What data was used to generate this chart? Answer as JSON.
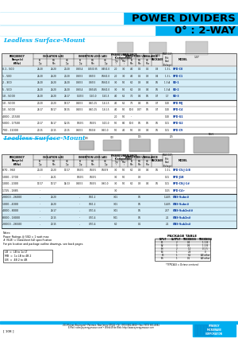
{
  "title_line1": "POWER DIVIDERS",
  "title_line2": "0° : 2-WAY",
  "cyan_color": "#00AEEF",
  "black_color": "#000000",
  "white_color": "#FFFFFF",
  "light_blue": "#D6EEF8",
  "section1_title": "Leadless Surface-Mount",
  "section2_title": "Leadless Surface-Mount",
  "bg_color": "#FFFFFF",
  "footer_text": "201 McLean Boulevard • Paterson, New Jersey 07504 • Tel: (973) 881-8800 • Fax: (973) 881-8361\nE-Mail: sales@synergymwave.com • World Wide Web: http://www.synergymwave.com",
  "page_num": "[ 108 ]",
  "table1_data": [
    [
      "0.1 - 500",
      "25/20",
      "25/20",
      "20/20",
      "0.3/0.4",
      "0.25/0.35",
      "0.45/1.0",
      "2.0",
      "3.0",
      "4.0",
      "0.2",
      "0.2",
      "0.3",
      "1.3 L",
      "3",
      "SPD-C0"
    ],
    [
      "1 - 500",
      "25/20",
      "25/20",
      "20/20",
      "0.3/0.5",
      "0.3/0.5",
      "0.56/1.0",
      "2.0",
      "3.0",
      "4.0",
      "0.2",
      "0.3",
      "0.4",
      "1.3 L",
      "3",
      "SPD-C1"
    ],
    [
      "2 - 300",
      "25/20",
      "25/20",
      "25/20",
      "0.3/0.5",
      "0.3/0.5",
      "0.56/1.0",
      "3.0",
      "5.0",
      "6.0",
      "0.3",
      "0.4",
      "0.5",
      "1.3 A",
      "3",
      "SD-1"
    ],
    [
      "5 - 500",
      "25/20",
      "25/20",
      "25/20",
      "0.3/0.4",
      "0.3/0.45",
      "0.56/1.0",
      "3.0",
      "5.0",
      "6.0",
      "0.3",
      "0.4",
      "0.5",
      "1.3 A",
      "3",
      "SD-2"
    ],
    [
      "10 - 5000",
      "25/20",
      "25/20",
      "25/17",
      "1.0/0.5",
      "1.5/1.0",
      "1.5/1.5",
      "4.0",
      "6.5",
      "7.0",
      "0.4",
      "0.5",
      "0.7",
      "1.7",
      "4",
      "SD-3"
    ],
    [
      "10 - 5000",
      "20/20",
      "20/20",
      "18/17",
      "0.4/0.5",
      "0.6/1.15",
      "1.3/1.5",
      "4.0",
      "6.5",
      "7.5",
      "0.4",
      "0.5",
      "0.7",
      "1.00",
      "4",
      "SPD-MJ"
    ],
    [
      "10 - 5000",
      "25/17",
      "18/17",
      "18/15",
      "0.4/0.5",
      "0.6/1.15",
      "1.3/1.5",
      "4.0",
      "5.0",
      "10.0",
      "0.37",
      "0.5",
      "0.7",
      "1.00",
      "4",
      "SPD-C4"
    ],
    [
      "4000 - 21500",
      "",
      "",
      "",
      "",
      "",
      "",
      "2.0",
      "5.0",
      "--",
      "",
      "",
      "",
      "1.00",
      "4",
      "SPD-G1"
    ],
    [
      "5000 - 17500",
      "20/17",
      "15/17",
      "12/15",
      "0.5/0.5",
      "0.5/0.5",
      "1.0/1.0",
      "5.0",
      "8.0",
      "10.0",
      "0.5",
      "0.5",
      "0.5",
      "1.01",
      "4",
      "SPD-G2"
    ],
    [
      "700 - 11000",
      "20/15",
      "20/15",
      "20/15",
      "0.6/0.5",
      "0.5/0.8",
      "0.6/1.0",
      "5.0",
      "4.0",
      "5.0",
      "0.3",
      "0.4",
      "0.5",
      "1.01",
      "3",
      "SPD-C9"
    ]
  ],
  "table2_data": [
    [
      "870 - 960",
      "20/20",
      "20/20",
      "17/17",
      "0.5/0.5",
      "0.5/0.5",
      "0.5/0.9",
      "3.0",
      "5.0",
      "6.0",
      "0.3",
      "0.4",
      "0.5",
      "1.0 L",
      "3",
      "SPD-C5/J-2/B"
    ],
    [
      "1000 - 1700",
      "--",
      "25/21",
      "",
      "0.5/0.5",
      "0.5/0.5",
      "",
      "3.0",
      "5.0",
      "",
      "0.3",
      "",
      "",
      "1.01",
      "3",
      "SPD-J1B"
    ],
    [
      "1000 - 2000",
      "17/17",
      "17/17",
      "14/13",
      "0.4/0.5",
      "0.5/0.5",
      "0.9/1.0",
      "3.0",
      "5.0",
      "6.0",
      "0.3",
      "0.4",
      "0.5",
      "1.01",
      "3",
      "SPD-C8/J-1#"
    ],
    [
      "1725 - 1885",
      "--",
      "",
      "",
      "",
      "",
      "",
      "3.0",
      "",
      "",
      "",
      "",
      "",
      "1.0/5",
      "3",
      "SPD-C4+"
    ],
    [
      "20000 - 26000",
      "--",
      "25/20",
      "",
      "--",
      "0.5/1.2",
      "",
      "3.01",
      "",
      "",
      "0.5",
      "",
      "",
      "1.24/5",
      "3",
      "GNS-Subn#"
    ],
    [
      "1000 - 4000",
      "--",
      "25/20",
      "",
      "--",
      "0.5/1.2",
      "",
      "3.01",
      "",
      "",
      "0.5",
      "",
      "",
      "1.24/5",
      "3",
      "GNS-Subn#"
    ],
    [
      "4000 - 8000",
      "--",
      "25/17",
      "",
      "--",
      "0.7/1.4",
      "",
      "3.01",
      "",
      "",
      "0.5",
      "",
      "",
      "2.57",
      "3",
      "GNS-Sub2n##"
    ],
    [
      "8000 - 18000",
      "--",
      "20/15",
      "",
      "--",
      "0.7/1.4",
      "",
      "5.01",
      "",
      "",
      "0.5",
      "",
      "",
      "2.1",
      "3",
      "GNS-Sub2n#"
    ],
    [
      "20000 - 26500",
      "--",
      "20/15",
      "",
      "--",
      "0.7/1.4",
      "",
      "6.0",
      "",
      "",
      "0.1",
      "",
      "",
      "2.1",
      "3",
      "GNS-Sub2n#"
    ]
  ],
  "notes": [
    "Notes:",
    "Power Ratings @ 50Ω = 1 watt max",
    "# (VLB) = Datasheet full specification",
    "For pin location and package outline drawings, see back pages."
  ],
  "legend_items": [
    "LB  =  LB to 1x LT",
    "MB  =  1x LB to 4B 2",
    "UB  =  4B 2 to 4B"
  ],
  "pkg_table_title": "PACKAGE TABLE",
  "pkg_table_headers": [
    "INPUT",
    "OUTPUT",
    "THICKNESS"
  ],
  "pkg_table_rows": [
    [
      "B1",
      "2",
      "0.4",
      "1 1 B"
    ],
    [
      "B2",
      "0",
      "0.4",
      "1 2 B"
    ],
    [
      "B3",
      "2",
      "1.2",
      "0 1 5"
    ],
    [
      "B4",
      "1",
      "2.4",
      "0"
    ],
    [
      "B5",
      "1",
      "6.1",
      "All other"
    ],
    [
      "B6",
      "1",
      "0.1",
      "All other"
    ]
  ],
  "typicals_note": "*TYPICALS = Octave centered"
}
